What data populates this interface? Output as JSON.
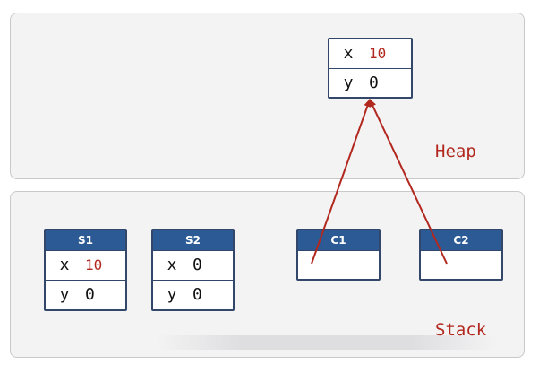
{
  "heap": {
    "label": "Heap",
    "object": {
      "fields": [
        {
          "name": "x",
          "value": "10"
        },
        {
          "name": "y",
          "value": "0"
        }
      ]
    }
  },
  "stack": {
    "label": "Stack",
    "structs": [
      {
        "title": "S1",
        "fields": [
          {
            "name": "x",
            "value": "10"
          },
          {
            "name": "y",
            "value": "0"
          }
        ]
      },
      {
        "title": "S2",
        "fields": [
          {
            "name": "x",
            "value": "0"
          },
          {
            "name": "y",
            "value": "0"
          }
        ]
      }
    ],
    "refs": [
      {
        "title": "C1"
      },
      {
        "title": "C2"
      }
    ]
  },
  "colors": {
    "arrow": "#b2281f",
    "header": "#2b5a94",
    "border": "#33476a",
    "highlight": "#b2281f"
  }
}
